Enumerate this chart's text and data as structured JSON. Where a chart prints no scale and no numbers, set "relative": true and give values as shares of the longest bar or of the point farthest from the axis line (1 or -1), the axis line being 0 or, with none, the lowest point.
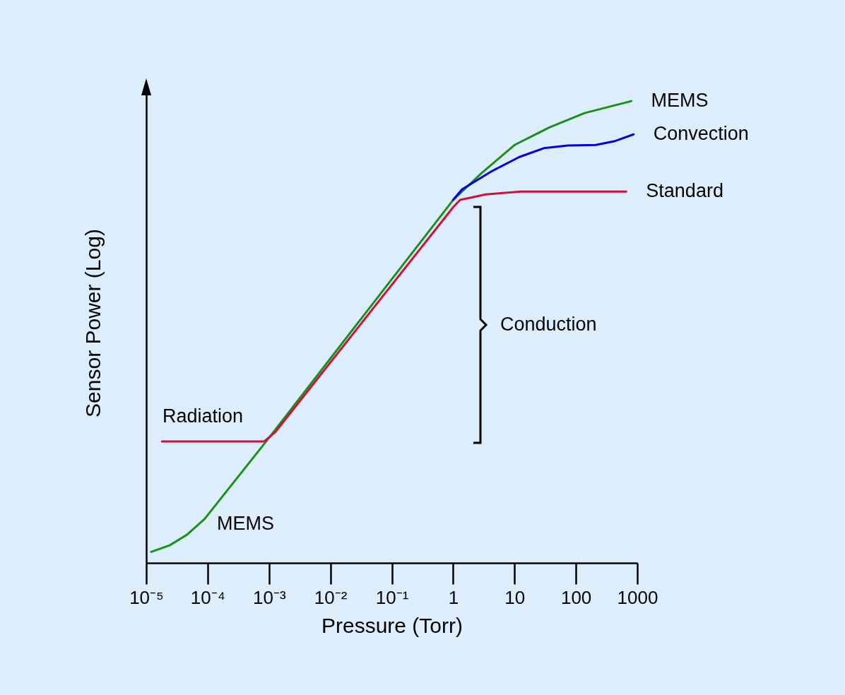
{
  "chart_data": {
    "type": "line",
    "relative": true,
    "xlabel": "Pressure (Torr)",
    "ylabel": "Sensor Power (Log)",
    "log": "x",
    "legend": false,
    "grid": false,
    "xlim": [
      1e-05,
      1000
    ],
    "xticks": [
      {
        "value": 1e-05,
        "label": "10⁻⁵"
      },
      {
        "value": 0.0001,
        "label": "10⁻⁴"
      },
      {
        "value": 0.001,
        "label": "10⁻³"
      },
      {
        "value": 0.01,
        "label": "10⁻²"
      },
      {
        "value": 0.1,
        "label": "10⁻¹"
      },
      1,
      10,
      100,
      1000
    ],
    "series": [
      {
        "name": "MEMS",
        "color": "#1a8f1a",
        "x": [
          1.2e-05,
          2.4e-05,
          4.6e-05,
          8.9e-05,
          0.001,
          1,
          2.9,
          10,
          37,
          138,
          800
        ],
        "values": [
          0.024,
          0.038,
          0.061,
          0.095,
          0.271,
          0.786,
          0.844,
          0.905,
          0.943,
          0.974,
          1.0
        ]
      },
      {
        "name": "Convection",
        "color": "#0000e0",
        "x": [
          1,
          1.4,
          4.1,
          12,
          30,
          74,
          210,
          420,
          870
        ],
        "values": [
          0.786,
          0.809,
          0.847,
          0.879,
          0.898,
          0.904,
          0.905,
          0.913,
          0.928
        ]
      },
      {
        "name": "Standard",
        "color": "#d0103a",
        "x": [
          1.8e-05,
          0.00083,
          0.00126,
          1,
          1.3,
          3.4,
          12.5,
          660
        ],
        "values": [
          0.263,
          0.263,
          0.283,
          0.77,
          0.786,
          0.798,
          0.804,
          0.804
        ]
      }
    ],
    "annotations": [
      "Radiation",
      "MEMS",
      "Conduction"
    ]
  }
}
